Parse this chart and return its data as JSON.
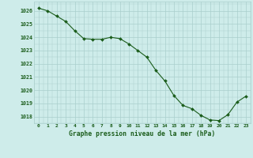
{
  "x": [
    0,
    1,
    2,
    3,
    4,
    5,
    6,
    7,
    8,
    9,
    10,
    11,
    12,
    13,
    14,
    15,
    16,
    17,
    18,
    19,
    20,
    21,
    22,
    23
  ],
  "y": [
    1026.2,
    1026.0,
    1025.6,
    1025.2,
    1024.5,
    1023.9,
    1023.85,
    1023.85,
    1024.0,
    1023.9,
    1023.5,
    1023.0,
    1022.5,
    1021.5,
    1020.7,
    1019.6,
    1018.85,
    1018.6,
    1018.1,
    1017.75,
    1017.7,
    1018.15,
    1019.1,
    1019.55
  ],
  "line_color": "#1a5c1a",
  "marker": "D",
  "marker_size": 2.0,
  "bg_color": "#ceecea",
  "grid_color": "#aacfcc",
  "xlabel": "Graphe pression niveau de la mer (hPa)",
  "xlabel_color": "#1a5c1a",
  "tick_color": "#1a5c1a",
  "ylim": [
    1017.5,
    1026.7
  ],
  "yticks": [
    1018,
    1019,
    1020,
    1021,
    1022,
    1023,
    1024,
    1025,
    1026
  ],
  "xlim": [
    -0.5,
    23.5
  ],
  "xticks": [
    0,
    1,
    2,
    3,
    4,
    5,
    6,
    7,
    8,
    9,
    10,
    11,
    12,
    13,
    14,
    15,
    16,
    17,
    18,
    19,
    20,
    21,
    22,
    23
  ]
}
